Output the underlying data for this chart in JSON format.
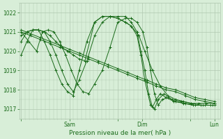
{
  "bg_color": "#d8eed8",
  "grid_color": "#b0c8b0",
  "line_color": "#1a6b1a",
  "ylabel_ticks": [
    1017,
    1018,
    1019,
    1020,
    1021,
    1022
  ],
  "xlabel": "Pression niveau de la mer( hPa )",
  "xtick_labels": [
    "",
    "Sam",
    "",
    "Dim",
    "",
    "Lun"
  ],
  "xtick_positions": [
    0.0,
    0.25,
    0.5,
    0.625,
    0.875,
    1.0
  ],
  "ylim": [
    1016.5,
    1022.5
  ],
  "xlim": [
    -0.01,
    1.03
  ],
  "figsize": [
    3.2,
    2.0
  ],
  "dpi": 100,
  "series": [
    {
      "x": [
        0.0,
        0.05,
        0.1,
        0.15,
        0.2,
        0.25,
        0.3,
        0.35,
        0.4,
        0.45,
        0.5,
        0.55,
        0.6,
        0.65,
        0.7,
        0.75,
        0.8,
        0.85,
        0.9,
        0.95,
        1.0
      ],
      "y": [
        1021.0,
        1020.8,
        1020.6,
        1020.4,
        1020.2,
        1020.0,
        1019.8,
        1019.6,
        1019.4,
        1019.2,
        1019.0,
        1018.8,
        1018.6,
        1018.4,
        1018.2,
        1018.0,
        1017.9,
        1017.7,
        1017.5,
        1017.4,
        1017.3
      ]
    },
    {
      "x": [
        0.0,
        0.05,
        0.1,
        0.15,
        0.2,
        0.25,
        0.3,
        0.35,
        0.4,
        0.45,
        0.5,
        0.55,
        0.6,
        0.65,
        0.7,
        0.75,
        0.8,
        0.85,
        0.9,
        0.95,
        1.0
      ],
      "y": [
        1021.1,
        1020.9,
        1020.7,
        1020.5,
        1020.3,
        1020.1,
        1019.9,
        1019.7,
        1019.5,
        1019.3,
        1019.1,
        1018.9,
        1018.7,
        1018.5,
        1018.3,
        1018.1,
        1018.0,
        1017.8,
        1017.6,
        1017.5,
        1017.4
      ]
    },
    {
      "x": [
        0.0,
        0.04,
        0.08,
        0.11,
        0.14,
        0.17,
        0.2,
        0.23,
        0.26,
        0.29,
        0.32,
        0.35,
        0.38,
        0.42,
        0.46,
        0.5,
        0.54,
        0.57,
        0.6,
        0.63,
        0.65,
        0.67,
        0.69,
        0.71,
        0.73,
        0.76,
        0.8,
        0.85,
        0.9,
        0.95,
        1.0
      ],
      "y": [
        1021.0,
        1020.5,
        1020.0,
        1021.0,
        1021.1,
        1021.0,
        1020.5,
        1019.8,
        1019.0,
        1018.3,
        1017.9,
        1017.8,
        1018.3,
        1019.0,
        1020.2,
        1021.5,
        1021.7,
        1021.7,
        1021.5,
        1021.0,
        1020.2,
        1019.0,
        1017.8,
        1017.2,
        1017.5,
        1017.6,
        1017.4,
        1017.3,
        1017.2,
        1017.2,
        1017.2
      ]
    },
    {
      "x": [
        0.0,
        0.03,
        0.06,
        0.09,
        0.12,
        0.15,
        0.18,
        0.21,
        0.24,
        0.27,
        0.3,
        0.34,
        0.38,
        0.42,
        0.46,
        0.5,
        0.54,
        0.57,
        0.6,
        0.62,
        0.64,
        0.66,
        0.68,
        0.7,
        0.72,
        0.75,
        0.79,
        0.84,
        0.89,
        0.94,
        0.99
      ],
      "y": [
        1020.5,
        1021.0,
        1021.1,
        1021.1,
        1021.0,
        1020.5,
        1019.8,
        1019.0,
        1018.3,
        1017.9,
        1018.5,
        1019.5,
        1020.8,
        1021.5,
        1021.8,
        1021.8,
        1021.8,
        1021.5,
        1021.0,
        1020.0,
        1019.0,
        1017.8,
        1017.1,
        1017.5,
        1017.8,
        1017.6,
        1017.4,
        1017.3,
        1017.2,
        1017.2,
        1017.2
      ]
    },
    {
      "x": [
        0.0,
        0.03,
        0.06,
        0.09,
        0.12,
        0.15,
        0.18,
        0.21,
        0.24,
        0.27,
        0.3,
        0.34,
        0.38,
        0.42,
        0.46,
        0.5,
        0.54,
        0.57,
        0.6,
        0.62,
        0.64,
        0.67,
        0.69,
        0.71,
        0.74,
        0.78,
        0.83,
        0.88,
        0.93,
        0.98
      ],
      "y": [
        1019.8,
        1020.5,
        1021.1,
        1021.1,
        1020.5,
        1019.8,
        1019.0,
        1018.3,
        1017.9,
        1017.7,
        1019.0,
        1020.5,
        1021.5,
        1021.8,
        1021.8,
        1021.7,
        1021.5,
        1021.3,
        1020.8,
        1019.8,
        1018.5,
        1017.2,
        1017.0,
        1017.5,
        1017.8,
        1017.5,
        1017.4,
        1017.3,
        1017.2,
        1017.2
      ]
    },
    {
      "x": [
        0.0,
        0.03,
        0.06,
        0.09,
        0.12,
        0.15,
        0.18,
        0.21,
        0.24,
        0.27,
        0.3,
        0.33,
        0.38,
        0.42,
        0.46,
        0.5,
        0.54,
        0.57,
        0.61,
        0.64,
        0.68,
        0.72,
        0.76,
        0.8,
        0.84,
        0.88,
        0.92,
        0.96,
        1.0
      ],
      "y": [
        1020.8,
        1021.0,
        1021.1,
        1021.1,
        1021.0,
        1020.8,
        1020.5,
        1020.2,
        1020.0,
        1019.8,
        1019.6,
        1019.5,
        1021.5,
        1021.8,
        1021.8,
        1021.7,
        1021.5,
        1021.3,
        1020.8,
        1020.0,
        1019.0,
        1018.2,
        1017.7,
        1017.5,
        1017.4,
        1017.3,
        1017.3,
        1017.3,
        1017.3
      ]
    }
  ]
}
